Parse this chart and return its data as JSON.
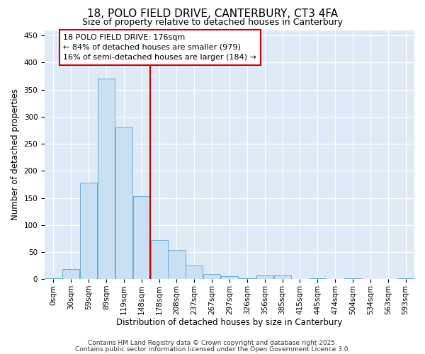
{
  "title": "18, POLO FIELD DRIVE, CANTERBURY, CT3 4FA",
  "subtitle": "Size of property relative to detached houses in Canterbury",
  "xlabel": "Distribution of detached houses by size in Canterbury",
  "ylabel": "Number of detached properties",
  "categories": [
    "0sqm",
    "30sqm",
    "59sqm",
    "89sqm",
    "119sqm",
    "148sqm",
    "178sqm",
    "208sqm",
    "237sqm",
    "267sqm",
    "297sqm",
    "326sqm",
    "356sqm",
    "385sqm",
    "415sqm",
    "445sqm",
    "474sqm",
    "504sqm",
    "534sqm",
    "563sqm",
    "593sqm"
  ],
  "values": [
    2,
    18,
    178,
    370,
    280,
    153,
    72,
    54,
    25,
    9,
    5,
    2,
    7,
    7,
    0,
    1,
    0,
    2,
    0,
    0,
    2
  ],
  "bar_color": "#c9dff2",
  "bar_edge_color": "#6aaed6",
  "vline_x_index": 6,
  "vline_color": "#cc0000",
  "annotation_line1": "18 POLO FIELD DRIVE: 176sqm",
  "annotation_line2": "← 84% of detached houses are smaller (979)",
  "annotation_line3": "16% of semi-detached houses are larger (184) →",
  "annotation_box_edge_color": "#cc0000",
  "ylim": [
    0,
    460
  ],
  "yticks": [
    0,
    50,
    100,
    150,
    200,
    250,
    300,
    350,
    400,
    450
  ],
  "footer_line1": "Contains HM Land Registry data © Crown copyright and database right 2025.",
  "footer_line2": "Contains public sector information licensed under the Open Government Licence 3.0.",
  "bg_color": "#deeaf6",
  "fig_bg_color": "#ffffff",
  "title_fontsize": 11,
  "subtitle_fontsize": 9,
  "axis_label_fontsize": 8.5,
  "tick_fontsize": 7.5,
  "annotation_fontsize": 8,
  "footer_fontsize": 6.5
}
